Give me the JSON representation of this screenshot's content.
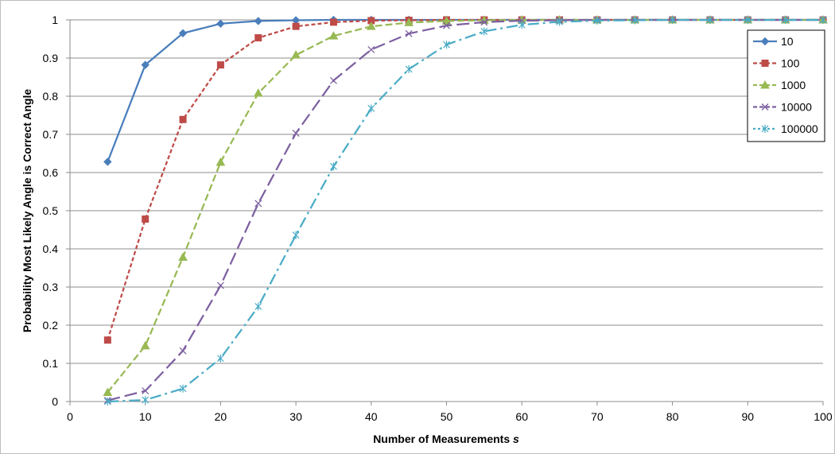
{
  "chart_data": {
    "type": "line",
    "title": "",
    "xlabel": "Number of Measurements",
    "xlabel_var": "s",
    "ylabel": "Probability Most Likely Angle is Correct Angle",
    "xlim": [
      0,
      100
    ],
    "ylim": [
      0,
      1
    ],
    "x_ticks": [
      "0",
      "10",
      "20",
      "30",
      "40",
      "50",
      "60",
      "70",
      "80",
      "90",
      "100"
    ],
    "y_ticks": [
      "0",
      "0.1",
      "0.2",
      "0.3",
      "0.4",
      "0.5",
      "0.6",
      "0.7",
      "0.8",
      "0.9",
      "1"
    ],
    "grid": "horizontal",
    "legend_position": "top-right",
    "x": [
      5,
      10,
      15,
      20,
      25,
      30,
      35,
      40,
      45,
      50,
      55,
      60,
      65,
      70,
      75,
      80,
      85,
      90,
      95,
      100
    ],
    "series": [
      {
        "name": "10",
        "color": "#4A7EBB",
        "marker": "diamond",
        "dash": "solid",
        "values": [
          0.628,
          0.882,
          0.965,
          0.99,
          0.997,
          0.999,
          1.0,
          1.0,
          1.0,
          1.0,
          1.0,
          1.0,
          1.0,
          1.0,
          1.0,
          1.0,
          1.0,
          1.0,
          1.0,
          1.0
        ]
      },
      {
        "name": "100",
        "color": "#BE4B48",
        "marker": "square",
        "dash": "short-dash",
        "values": [
          0.161,
          0.478,
          0.739,
          0.882,
          0.953,
          0.983,
          0.994,
          0.998,
          0.999,
          1.0,
          1.0,
          1.0,
          1.0,
          1.0,
          1.0,
          1.0,
          1.0,
          1.0,
          1.0,
          1.0
        ]
      },
      {
        "name": "1000",
        "color": "#98B954",
        "marker": "triangle",
        "dash": "dash",
        "values": [
          0.024,
          0.146,
          0.378,
          0.627,
          0.808,
          0.908,
          0.958,
          0.983,
          0.993,
          0.997,
          0.999,
          1.0,
          1.0,
          1.0,
          1.0,
          1.0,
          1.0,
          1.0,
          1.0,
          1.0
        ]
      },
      {
        "name": "10000",
        "color": "#7D60A0",
        "marker": "x",
        "dash": "long-dash",
        "values": [
          0.003,
          0.028,
          0.133,
          0.304,
          0.519,
          0.703,
          0.841,
          0.922,
          0.964,
          0.985,
          0.994,
          0.998,
          0.999,
          1.0,
          1.0,
          1.0,
          1.0,
          1.0,
          1.0,
          1.0
        ]
      },
      {
        "name": "100000",
        "color": "#4BACC6",
        "marker": "asterisk",
        "dash": "dash-dot",
        "values": [
          0.0,
          0.004,
          0.034,
          0.113,
          0.249,
          0.436,
          0.616,
          0.768,
          0.871,
          0.935,
          0.97,
          0.987,
          0.995,
          0.998,
          0.999,
          1.0,
          1.0,
          1.0,
          1.0,
          1.0
        ]
      }
    ]
  }
}
